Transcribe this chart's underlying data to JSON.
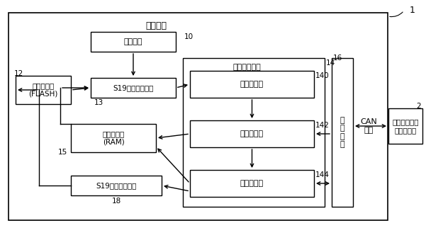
{
  "bg_color": "#ffffff",
  "labels": {
    "outer_box": "标定装置",
    "label1": "1",
    "label2": "2",
    "label10": "10",
    "label12": "12",
    "label13": "13",
    "label14": "14",
    "label15": "15",
    "label16": "16",
    "label18": "18",
    "label140": "140",
    "label142": "142",
    "label144": "144",
    "shezhi": "设置单元",
    "s19compile": "S19文件编译单元",
    "flash": "第一存储器\n(FLASH)",
    "ram": "第二存储器\n(RAM)",
    "s19update": "S19文件更新单元",
    "match": "匹配标定单元",
    "parse": "解析子单元",
    "readwrite": "读写子单元",
    "calibrate": "标定子单元",
    "comm": "通\n信\n单\n元",
    "can": "CAN\n总线",
    "ecu": "待标定汽车电\n子控制单元"
  }
}
